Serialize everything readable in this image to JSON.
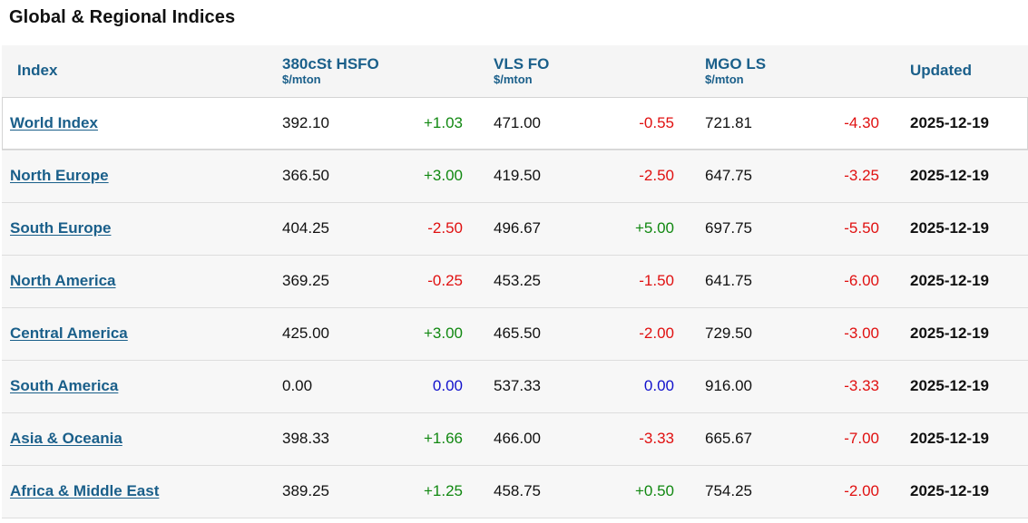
{
  "page": {
    "title": "Global & Regional Indices"
  },
  "colors": {
    "header_text": "#1a5f8a",
    "positive": "#118811",
    "negative": "#e01010",
    "zero": "#1111cc"
  },
  "table": {
    "headers": {
      "index": "Index",
      "hsfo": {
        "name": "380cSt HSFO",
        "unit": "$/mton"
      },
      "vlsfo": {
        "name": "VLS FO",
        "unit": "$/mton"
      },
      "mgo": {
        "name": "MGO LS",
        "unit": "$/mton"
      },
      "updated": "Updated"
    },
    "rows": [
      {
        "name": "World Index",
        "hsfo": "392.10",
        "hsfo_chg": "+1.03",
        "vlsfo": "471.00",
        "vlsfo_chg": "-0.55",
        "mgo": "721.81",
        "mgo_chg": "-4.30",
        "updated": "2025-12-19"
      },
      {
        "name": "North Europe",
        "hsfo": "366.50",
        "hsfo_chg": "+3.00",
        "vlsfo": "419.50",
        "vlsfo_chg": "-2.50",
        "mgo": "647.75",
        "mgo_chg": "-3.25",
        "updated": "2025-12-19"
      },
      {
        "name": "South Europe",
        "hsfo": "404.25",
        "hsfo_chg": "-2.50",
        "vlsfo": "496.67",
        "vlsfo_chg": "+5.00",
        "mgo": "697.75",
        "mgo_chg": "-5.50",
        "updated": "2025-12-19"
      },
      {
        "name": "North America",
        "hsfo": "369.25",
        "hsfo_chg": "-0.25",
        "vlsfo": "453.25",
        "vlsfo_chg": "-1.50",
        "mgo": "641.75",
        "mgo_chg": "-6.00",
        "updated": "2025-12-19"
      },
      {
        "name": "Central America",
        "hsfo": "425.00",
        "hsfo_chg": "+3.00",
        "vlsfo": "465.50",
        "vlsfo_chg": "-2.00",
        "mgo": "729.50",
        "mgo_chg": "-3.00",
        "updated": "2025-12-19"
      },
      {
        "name": "South America",
        "hsfo": "0.00",
        "hsfo_chg": "0.00",
        "vlsfo": "537.33",
        "vlsfo_chg": "0.00",
        "mgo": "916.00",
        "mgo_chg": "-3.33",
        "updated": "2025-12-19"
      },
      {
        "name": "Asia & Oceania",
        "hsfo": "398.33",
        "hsfo_chg": "+1.66",
        "vlsfo": "466.00",
        "vlsfo_chg": "-3.33",
        "mgo": "665.67",
        "mgo_chg": "-7.00",
        "updated": "2025-12-19"
      },
      {
        "name": "Africa & Middle East",
        "hsfo": "389.25",
        "hsfo_chg": "+1.25",
        "vlsfo": "458.75",
        "vlsfo_chg": "+0.50",
        "mgo": "754.25",
        "mgo_chg": "-2.00",
        "updated": "2025-12-19"
      }
    ]
  }
}
